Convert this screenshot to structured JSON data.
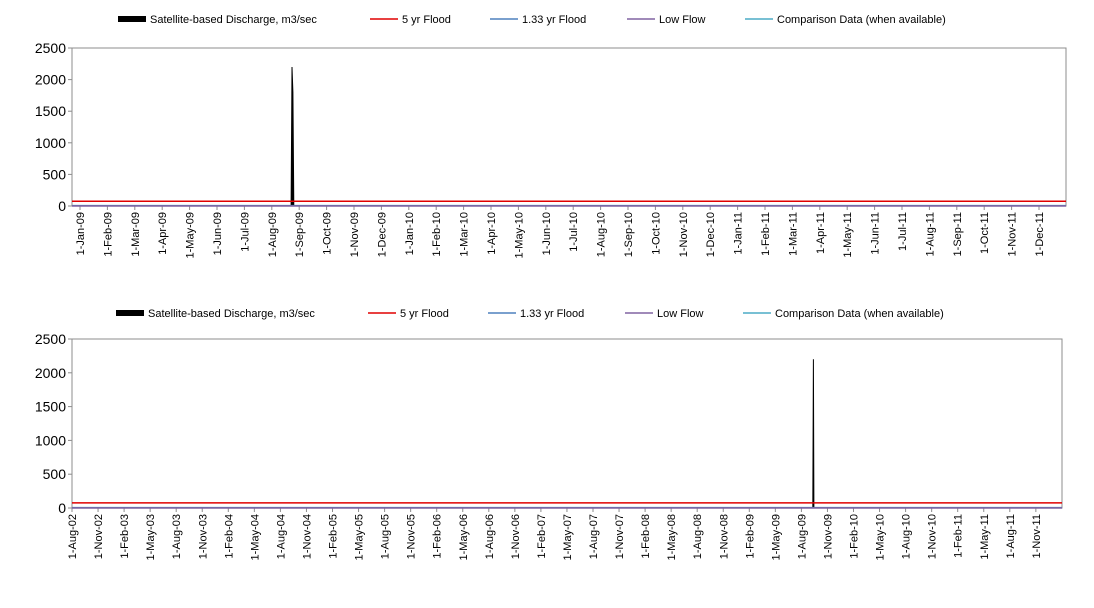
{
  "chart_data": [
    {
      "type": "area",
      "legend": [
        {
          "name": "Satellite-based Discharge, m3/sec",
          "color": "#000000",
          "style": "area"
        },
        {
          "name": "5 yr Flood",
          "color": "#e00000",
          "style": "line"
        },
        {
          "name": "1.33 yr Flood",
          "color": "#4f81bd",
          "style": "line"
        },
        {
          "name": "Low Flow",
          "color": "#8064a2",
          "style": "line"
        },
        {
          "name": "Comparison Data (when available)",
          "color": "#4bacc6",
          "style": "line"
        }
      ],
      "x_tick_labels": [
        "1-Jan-09",
        "1-Feb-09",
        "1-Mar-09",
        "1-Apr-09",
        "1-May-09",
        "1-Jun-09",
        "1-Jul-09",
        "1-Aug-09",
        "1-Sep-09",
        "1-Oct-09",
        "1-Nov-09",
        "1-Dec-09",
        "1-Jan-10",
        "1-Feb-10",
        "1-Mar-10",
        "1-Apr-10",
        "1-May-10",
        "1-Jun-10",
        "1-Jul-10",
        "1-Aug-10",
        "1-Sep-10",
        "1-Oct-10",
        "1-Nov-10",
        "1-Dec-10",
        "1-Jan-11",
        "1-Feb-11",
        "1-Mar-11",
        "1-Apr-11",
        "1-May-11",
        "1-Jun-11",
        "1-Jul-11",
        "1-Aug-11",
        "1-Sep-11",
        "1-Oct-11",
        "1-Nov-11",
        "1-Dec-11"
      ],
      "y_ticks": [
        0,
        500,
        1000,
        1500,
        2000,
        2500
      ],
      "ylim": [
        0,
        2500
      ],
      "xlim": [
        "2009-01-01",
        "2012-01-31"
      ],
      "series": [
        {
          "name": "Satellite-based Discharge, m3/sec",
          "points": [
            [
              "2009-09-06",
              0
            ],
            [
              "2009-09-07",
              2200
            ],
            [
              "2009-09-08",
              1800
            ],
            [
              "2009-09-09",
              0
            ]
          ]
        },
        {
          "name": "5 yr Flood",
          "constant": 75
        },
        {
          "name": "1.33 yr Flood",
          "constant": 5
        },
        {
          "name": "Low Flow",
          "constant": 0
        }
      ]
    },
    {
      "type": "area",
      "legend": [
        {
          "name": "Satellite-based Discharge, m3/sec",
          "color": "#000000",
          "style": "area"
        },
        {
          "name": "5 yr Flood",
          "color": "#e00000",
          "style": "line"
        },
        {
          "name": "1.33 yr Flood",
          "color": "#4f81bd",
          "style": "line"
        },
        {
          "name": "Low Flow",
          "color": "#8064a2",
          "style": "line"
        },
        {
          "name": "Comparison Data (when available)",
          "color": "#4bacc6",
          "style": "line"
        }
      ],
      "x_tick_labels": [
        "1-Aug-02",
        "1-Nov-02",
        "1-Feb-03",
        "1-May-03",
        "1-Aug-03",
        "1-Nov-03",
        "1-Feb-04",
        "1-May-04",
        "1-Aug-04",
        "1-Nov-04",
        "1-Feb-05",
        "1-May-05",
        "1-Aug-05",
        "1-Nov-05",
        "1-Feb-06",
        "1-May-06",
        "1-Aug-06",
        "1-Nov-06",
        "1-Feb-07",
        "1-May-07",
        "1-Aug-07",
        "1-Nov-07",
        "1-Feb-08",
        "1-May-08",
        "1-Aug-08",
        "1-Nov-08",
        "1-Feb-09",
        "1-May-09",
        "1-Aug-09",
        "1-Nov-09",
        "1-Feb-10",
        "1-May-10",
        "1-Aug-10",
        "1-Nov-10",
        "1-Feb-11",
        "1-May-11",
        "1-Aug-11",
        "1-Nov-11"
      ],
      "y_ticks": [
        0,
        500,
        1000,
        1500,
        2000,
        2500
      ],
      "ylim": [
        0,
        2500
      ],
      "xlim": [
        "2002-08-01",
        "2012-01-25"
      ],
      "series": [
        {
          "name": "Satellite-based Discharge, m3/sec",
          "points": [
            [
              "2009-09-05",
              0
            ],
            [
              "2009-09-07",
              2200
            ],
            [
              "2009-09-09",
              0
            ]
          ]
        },
        {
          "name": "5 yr Flood",
          "constant": 75
        },
        {
          "name": "1.33 yr Flood",
          "constant": 5
        },
        {
          "name": "Low Flow",
          "constant": 0
        }
      ]
    }
  ]
}
